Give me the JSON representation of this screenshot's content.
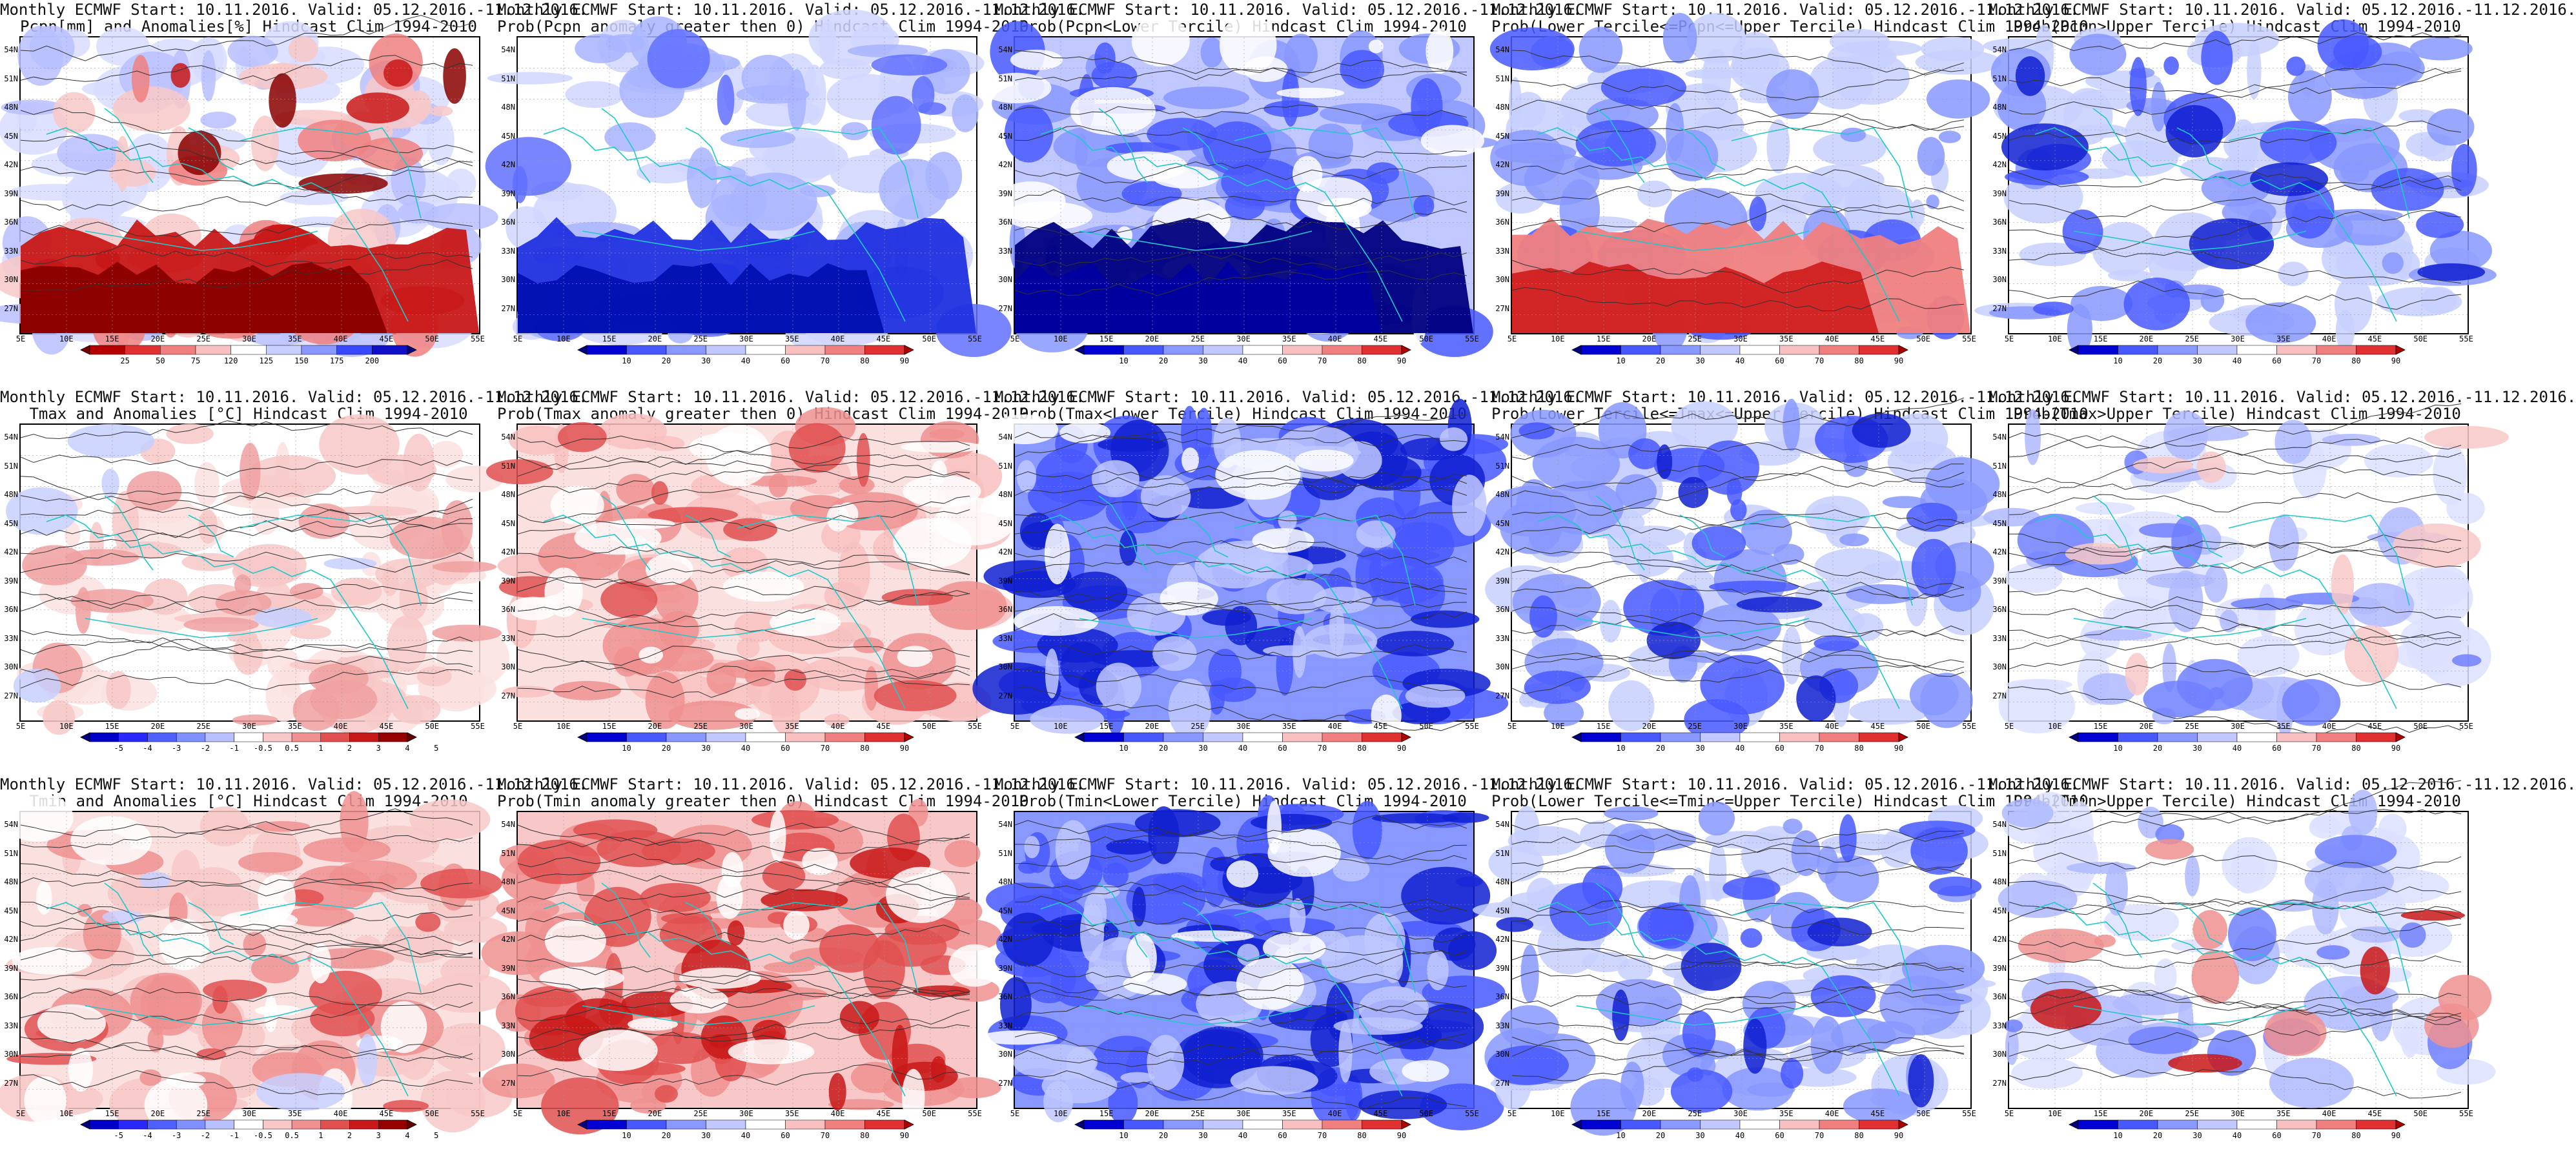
{
  "y_ticks": [
    "54N",
    "51N",
    "48N",
    "45N",
    "42N",
    "39N",
    "36N",
    "33N",
    "30N",
    "27N"
  ],
  "x_ticks": [
    "5E",
    "10E",
    "15E",
    "20E",
    "25E",
    "30E",
    "35E",
    "40E",
    "45E",
    "50E",
    "55E"
  ],
  "colorbars": {
    "pcpn_anom": {
      "labels": [
        "25",
        "50",
        "75",
        "120",
        "125",
        "150",
        "175",
        "200"
      ],
      "colors": [
        "#7a0000",
        "#b40000",
        "#e03030",
        "#f08080",
        "#f8c0c0",
        "#ffffff",
        "#c8d0ff",
        "#8898ff",
        "#3848ff",
        "#1010c8",
        "#000080"
      ]
    },
    "temp_anom": {
      "labels": [
        "-5",
        "-4",
        "-3",
        "-2",
        "-1",
        "-0.5",
        "0.5",
        "1",
        "2",
        "3",
        "4",
        "5"
      ],
      "colors": [
        "#000080",
        "#0000c8",
        "#2828ff",
        "#5060ff",
        "#8090ff",
        "#b8c0ff",
        "#ffffff",
        "#f8c8c8",
        "#f09090",
        "#e05050",
        "#c81818",
        "#960000",
        "#600000"
      ]
    },
    "prob": {
      "labels": [
        "10",
        "20",
        "30",
        "40",
        "60",
        "70",
        "80",
        "90"
      ],
      "colors": [
        "#000080",
        "#0000d0",
        "#4858ff",
        "#8898ff",
        "#c0c8ff",
        "#ffffff",
        "#f8c0c0",
        "#f08080",
        "#e03030",
        "#b00000"
      ]
    }
  },
  "panels": [
    {
      "title1": "Monthly ECMWF Start: 10.11.2016. Valid: 05.12.2016.-11.12.2016.",
      "title2": "Pcpn[mm] and Anomalies[%] Hindcast Clim 1994-2010",
      "palette": "mixed_pcpn",
      "colorbar": "pcpn_anom",
      "contours": "pcpn"
    },
    {
      "title1": "Monthly ECMWF Start: 10.11.2016. Valid: 05.12.2016.-11.12.2016.",
      "title2": "Prob(Pcpn anomaly greater then 0) Hindcast Clim 1994-2010",
      "palette": "blue_south",
      "colorbar": "prob",
      "contours": "none"
    },
    {
      "title1": "Monthly ECMWF Start: 10.11.2016. Valid: 05.12.2016.-11.12.2016.",
      "title2": "Prob(Pcpn<Lower Tercile) Hindcast Clim 1994-2010",
      "palette": "blue_heavy",
      "colorbar": "prob",
      "contours": "pcpn"
    },
    {
      "title1": "Monthly ECMWF Start: 10.11.2016. Valid: 05.12.2016.-11.12.2016.",
      "title2": "Prob(Lower Tercile<=Pcpn<=Upper Tercile) Hindcast Clim 1994-2010",
      "palette": "blue_red_south",
      "colorbar": "prob",
      "contours": "pcpn"
    },
    {
      "title1": "Monthly ECMWF Start: 10.11.2016. Valid: 05.12.2016.-11.12.2016.",
      "title2": "Prob(Pcpn>Upper Tercile) Hindcast Clim 1994-2010",
      "palette": "blue_mid",
      "colorbar": "prob",
      "contours": "pcpn"
    },
    {
      "title1": "Monthly ECMWF Start: 10.11.2016. Valid: 05.12.2016.-11.12.2016.",
      "title2": "Tmax and Anomalies [°C] Hindcast Clim 1994-2010",
      "palette": "red_light",
      "colorbar": "temp_anom",
      "contours": "temp"
    },
    {
      "title1": "Monthly ECMWF Start: 10.11.2016. Valid: 05.12.2016.-11.12.2016.",
      "title2": "Prob(Tmax anomaly greater then 0) Hindcast Clim 1994-2010",
      "palette": "red_mid",
      "colorbar": "prob",
      "contours": "temp"
    },
    {
      "title1": "Monthly ECMWF Start: 10.11.2016. Valid: 05.12.2016.-11.12.2016.",
      "title2": "Prob(Tmax<Lower Tercile) Hindcast Clim 1994-2010",
      "palette": "blue_heavy2",
      "colorbar": "prob",
      "contours": "temp"
    },
    {
      "title1": "Monthly ECMWF Start: 10.11.2016. Valid: 05.12.2016.-11.12.2016.",
      "title2": "Prob(Lower Tercile<=Tmax<=Upper Tercile) Hindcast Clim 1994-2010",
      "palette": "blue_mid",
      "colorbar": "prob",
      "contours": "temp"
    },
    {
      "title1": "Monthly ECMWF Start: 10.11.2016. Valid: 05.12.2016.-11.12.2016.",
      "title2": "Prob(Tmax>Upper Tercile) Hindcast Clim 1994-2010",
      "palette": "white_blue_ne",
      "colorbar": "prob",
      "contours": "temp"
    },
    {
      "title1": "Monthly ECMWF Start: 10.11.2016. Valid: 05.12.2016.-11.12.2016.",
      "title2": "Tmin and Anomalies [°C] Hindcast Clim 1994-2010",
      "palette": "red_light2",
      "colorbar": "temp_anom",
      "contours": "temp"
    },
    {
      "title1": "Monthly ECMWF Start: 10.11.2016. Valid: 05.12.2016.-11.12.2016.",
      "title2": "Prob(Tmin anomaly greater then 0) Hindcast Clim 1994-2010",
      "palette": "red_strong",
      "colorbar": "prob",
      "contours": "temp"
    },
    {
      "title1": "Monthly ECMWF Start: 10.11.2016. Valid: 05.12.2016.-11.12.2016.",
      "title2": "Prob(Tmin<Lower Tercile) Hindcast Clim 1994-2010",
      "palette": "blue_heavy2",
      "colorbar": "prob",
      "contours": "temp"
    },
    {
      "title1": "Monthly ECMWF Start: 10.11.2016. Valid: 05.12.2016.-11.12.2016.",
      "title2": "Prob(Lower Tercile<=Tmin<=Upper Tercile) Hindcast Clim 1994-2010",
      "palette": "blue_mid",
      "colorbar": "prob",
      "contours": "temp"
    },
    {
      "title1": "Monthly ECMWF Start: 10.11.2016. Valid: 05.12.2016.-11.12.2016.",
      "title2": "Prob(Tmin>Upper Tercile) Hindcast Clim 1994-2010",
      "palette": "white_blue_red",
      "colorbar": "prob",
      "contours": "temp"
    }
  ]
}
